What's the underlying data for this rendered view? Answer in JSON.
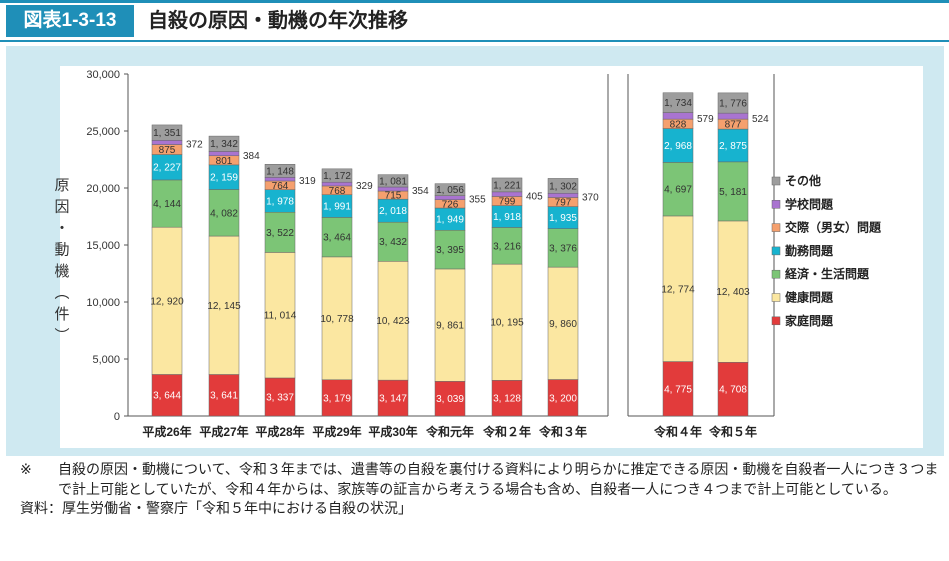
{
  "header": {
    "figure_number": "図表1-3-13",
    "title": "自殺の原因・動機の年次推移"
  },
  "chart_data": {
    "type": "bar",
    "stacked": true,
    "y_label": "原因・動機（件）",
    "ylim": [
      0,
      30000
    ],
    "y_ticks": [
      "0",
      "5,000",
      "10,000",
      "15,000",
      "20,000",
      "25,000",
      "30,000"
    ],
    "y_tick_values": [
      0,
      5000,
      10000,
      15000,
      20000,
      25000,
      30000
    ],
    "categories": [
      "平成26年",
      "平成27年",
      "平成28年",
      "平成29年",
      "平成30年",
      "令和元年",
      "令和２年",
      "令和３年",
      "令和４年",
      "令和５年"
    ],
    "panel_split_index": 8,
    "series": [
      {
        "name": "家庭問題",
        "color": "#e23b3b",
        "values": [
          3644,
          3641,
          3337,
          3179,
          3147,
          3039,
          3128,
          3200,
          4775,
          4708
        ],
        "labels": [
          "3, 644",
          "3, 641",
          "3, 337",
          "3, 179",
          "3, 147",
          "3, 039",
          "3, 128",
          "3, 200",
          "4, 775",
          "4, 708"
        ]
      },
      {
        "name": "健康問題",
        "color": "#fbe7a1",
        "values": [
          12920,
          12145,
          11014,
          10778,
          10423,
          9861,
          10195,
          9860,
          12774,
          12403
        ],
        "labels": [
          "12, 920",
          "12, 145",
          "11, 014",
          "10, 778",
          "10, 423",
          "9, 861",
          "10, 195",
          "9, 860",
          "12, 774",
          "12, 403"
        ]
      },
      {
        "name": "経済・生活問題",
        "color": "#7cc576",
        "values": [
          4144,
          4082,
          3522,
          3464,
          3432,
          3395,
          3216,
          3376,
          4697,
          5181
        ],
        "labels": [
          "4, 144",
          "4, 082",
          "3, 522",
          "3, 464",
          "3, 432",
          "3, 395",
          "3, 216",
          "3, 376",
          "4, 697",
          "5, 181"
        ]
      },
      {
        "name": "勤務問題",
        "color": "#17b3cf",
        "values": [
          2227,
          2159,
          1978,
          1991,
          2018,
          1949,
          1918,
          1935,
          2968,
          2875
        ],
        "labels": [
          "2, 227",
          "2, 159",
          "1, 978",
          "1, 991",
          "2, 018",
          "1, 949",
          "1, 918",
          "1, 935",
          "2, 968",
          "2, 875"
        ]
      },
      {
        "name": "交際（男女）問題",
        "color": "#f5a06e",
        "values": [
          875,
          801,
          764,
          768,
          715,
          726,
          799,
          797,
          828,
          877
        ],
        "labels": [
          "875",
          "801",
          "764",
          "768",
          "715",
          "726",
          "799",
          "797",
          "828",
          "877"
        ]
      },
      {
        "name": "学校問題",
        "color": "#a974d0",
        "values": [
          372,
          384,
          319,
          329,
          354,
          355,
          405,
          370,
          579,
          524
        ],
        "labels": [
          "372",
          "384",
          "319",
          "329",
          "354",
          "355",
          "405",
          "370",
          "579",
          "524"
        ],
        "label_outside": true
      },
      {
        "name": "その他",
        "color": "#9d9d9d",
        "values": [
          1351,
          1342,
          1148,
          1172,
          1081,
          1056,
          1221,
          1302,
          1734,
          1776
        ],
        "labels": [
          "1, 351",
          "1, 342",
          "1, 148",
          "1, 172",
          "1, 081",
          "1, 056",
          "1, 221",
          "1, 302",
          "1, 734",
          "1, 776"
        ]
      }
    ],
    "legend": {
      "position": "right",
      "order": [
        "その他",
        "学校問題",
        "交際（男女）問題",
        "勤務問題",
        "経済・生活問題",
        "健康問題",
        "家庭問題"
      ]
    }
  },
  "notes": {
    "mark": "※",
    "text": "自殺の原因・動機について、令和３年までは、遺書等の自殺を裏付ける資料により明らかに推定できる原因・動機を自殺者一人につき３つまで計上可能としていたが、令和４年からは、家族等の証言から考えうる場合も含め、自殺者一人につき４つまで計上可能としている。",
    "source": "資料：厚生労働省・警察庁「令和５年中における自殺の状況」"
  }
}
